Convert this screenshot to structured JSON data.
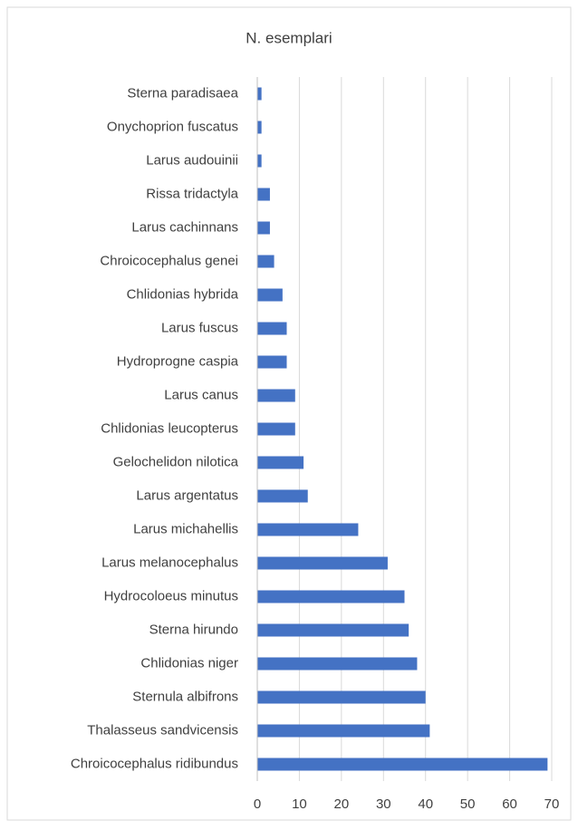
{
  "chart_data": {
    "type": "bar",
    "orientation": "horizontal",
    "title": "N. esemplari",
    "categories": [
      "Sterna paradisaea",
      "Onychoprion fuscatus",
      "Larus audouinii",
      "Rissa tridactyla",
      "Larus cachinnans",
      "Chroicocephalus genei",
      "Chlidonias hybrida",
      "Larus fuscus",
      "Hydroprogne caspia",
      "Larus canus",
      "Chlidonias leucopterus",
      "Gelochelidon nilotica",
      "Larus argentatus",
      "Larus michahellis",
      "Larus melanocephalus",
      "Hydrocoloeus minutus",
      "Sterna hirundo",
      "Chlidonias niger",
      "Sternula albifrons",
      "Thalasseus sandvicensis",
      "Chroicocephalus ridibundus"
    ],
    "values": [
      1,
      1,
      1,
      3,
      3,
      4,
      6,
      7,
      7,
      9,
      9,
      11,
      12,
      24,
      31,
      35,
      36,
      38,
      40,
      41,
      69
    ],
    "color": "#4472c4",
    "xlim": [
      0,
      70
    ],
    "xticks": [
      0,
      10,
      20,
      30,
      40,
      50,
      60,
      70
    ],
    "grid": true
  }
}
